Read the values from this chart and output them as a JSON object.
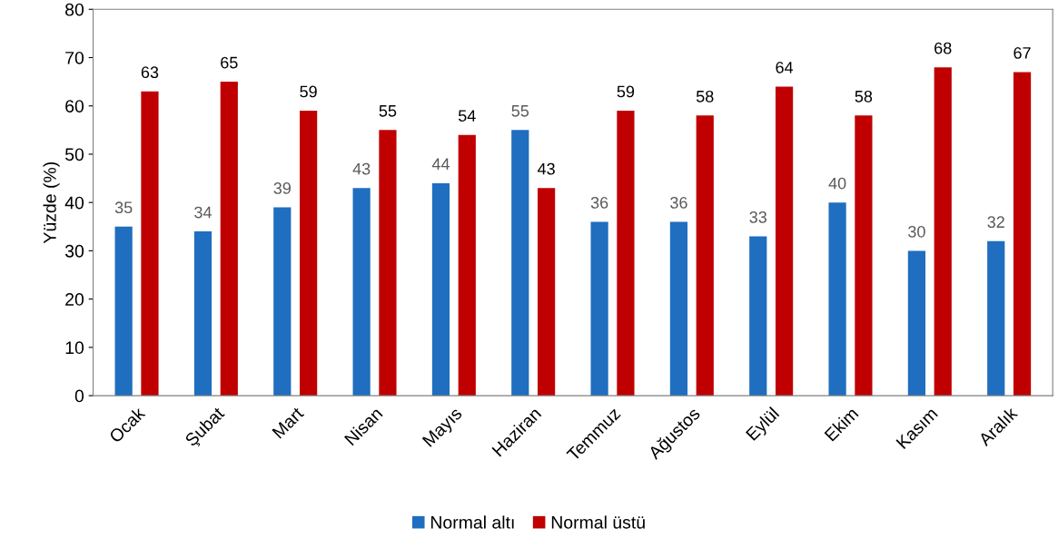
{
  "chart_data": {
    "type": "bar",
    "ylabel": "Yüzde (%)",
    "categories": [
      "Ocak",
      "Şubat",
      "Mart",
      "Nisan",
      "Mayıs",
      "Haziran",
      "Temmuz",
      "Ağustos",
      "Eylül",
      "Ekim",
      "Kasım",
      "Aralık"
    ],
    "series": [
      {
        "name": "Normal altı",
        "color": "#1f6ebf",
        "values": [
          35,
          34,
          39,
          43,
          44,
          55,
          36,
          36,
          33,
          40,
          30,
          32
        ]
      },
      {
        "name": "Normal üstü",
        "color": "#c00000",
        "values": [
          63,
          65,
          59,
          55,
          54,
          43,
          59,
          58,
          64,
          58,
          68,
          67
        ]
      }
    ],
    "ylim": [
      0,
      80
    ],
    "yticks": [
      0,
      10,
      20,
      30,
      40,
      50,
      60,
      70,
      80
    ],
    "data_labels": true,
    "grid": false,
    "legend": "bottom"
  }
}
